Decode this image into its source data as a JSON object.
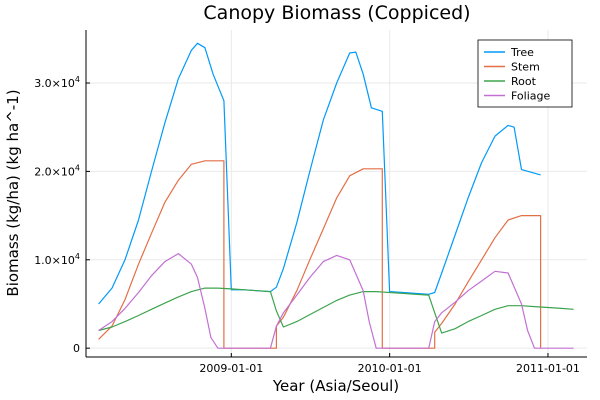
{
  "chart_data": {
    "type": "line",
    "title": "Canopy Biomass (Coppiced)",
    "xlabel": "Year (Asia/Seoul)",
    "ylabel": "Biomass (kg/ha) (kg ha^-1)",
    "x_unit": "date",
    "xlim": [
      "2008-02-01",
      "2011-04-01"
    ],
    "ylim": [
      -1000,
      36000
    ],
    "x_ticks": [
      "2009-01-01",
      "2010-01-01",
      "2011-01-01"
    ],
    "x_tick_labels": [
      "2009-01-01",
      "2010-01-01",
      "2011-01-01"
    ],
    "y_ticks": [
      0,
      10000,
      20000,
      30000
    ],
    "y_tick_labels": [
      {
        "label": "0",
        "base": "0",
        "exp": ""
      },
      {
        "label": "1.0×10^4",
        "base": "1.0×10",
        "exp": "4"
      },
      {
        "label": "2.0×10^4",
        "base": "2.0×10",
        "exp": "4"
      },
      {
        "label": "3.0×10^4",
        "base": "3.0×10",
        "exp": "4"
      }
    ],
    "grid": true,
    "legend_position": "top-right",
    "series": [
      {
        "name": "Tree",
        "color": "#009AFA",
        "x": [
          "2008-03-01",
          "2008-04-01",
          "2008-05-01",
          "2008-06-01",
          "2008-07-01",
          "2008-08-01",
          "2008-09-01",
          "2008-10-01",
          "2008-10-15",
          "2008-11-01",
          "2008-11-20",
          "2008-12-15",
          "2008-12-15",
          "2009-01-01",
          "2009-02-01",
          "2009-03-01",
          "2009-04-01",
          "2009-04-15",
          "2009-05-01",
          "2009-06-01",
          "2009-07-01",
          "2009-08-01",
          "2009-09-01",
          "2009-10-01",
          "2009-10-15",
          "2009-11-01",
          "2009-11-20",
          "2009-12-15",
          "2009-12-15",
          "2010-01-01",
          "2010-02-01",
          "2010-03-01",
          "2010-04-01",
          "2010-04-15",
          "2010-05-01",
          "2010-06-01",
          "2010-07-01",
          "2010-08-01",
          "2010-09-01",
          "2010-10-01",
          "2010-10-15",
          "2010-11-01",
          "2010-12-01",
          "2010-12-15",
          "2010-12-15"
        ],
        "values": [
          5000,
          6800,
          10000,
          14500,
          20000,
          25500,
          30500,
          33700,
          34500,
          34000,
          31000,
          28000,
          28000,
          6600,
          6600,
          6500,
          6400,
          6900,
          9000,
          14200,
          20000,
          25800,
          30000,
          33400,
          33500,
          31000,
          27200,
          26800,
          26800,
          6400,
          6300,
          6200,
          6100,
          6300,
          8500,
          12800,
          17000,
          21000,
          24000,
          25200,
          25000,
          20200,
          19800,
          19600,
          19600
        ]
      },
      {
        "name": "Stem",
        "color": "#E26F46",
        "x": [
          "2008-03-01",
          "2008-04-01",
          "2008-05-01",
          "2008-06-01",
          "2008-07-01",
          "2008-08-01",
          "2008-09-01",
          "2008-10-01",
          "2008-11-01",
          "2008-11-20",
          "2008-12-15",
          "2008-12-15",
          "2009-04-15",
          "2009-04-15",
          "2009-05-01",
          "2009-06-01",
          "2009-07-01",
          "2009-08-01",
          "2009-09-01",
          "2009-10-01",
          "2009-11-01",
          "2009-11-20",
          "2009-12-15",
          "2009-12-15",
          "2010-04-15",
          "2010-04-15",
          "2010-05-01",
          "2010-06-01",
          "2010-07-01",
          "2010-08-01",
          "2010-09-01",
          "2010-10-01",
          "2010-11-01",
          "2010-12-15",
          "2010-12-15"
        ],
        "values": [
          1000,
          2500,
          5500,
          9500,
          13000,
          16500,
          19000,
          20800,
          21200,
          21200,
          21200,
          0,
          0,
          2500,
          3500,
          6500,
          10000,
          13500,
          17000,
          19500,
          20300,
          20300,
          20300,
          0,
          0,
          1800,
          2800,
          5000,
          7500,
          10000,
          12500,
          14500,
          15000,
          15000,
          0
        ]
      },
      {
        "name": "Root",
        "color": "#3DA44D",
        "x": [
          "2008-03-01",
          "2008-04-01",
          "2008-05-01",
          "2008-06-01",
          "2008-07-01",
          "2008-08-01",
          "2008-09-01",
          "2008-10-01",
          "2008-11-01",
          "2008-12-01",
          "2009-01-01",
          "2009-02-01",
          "2009-03-01",
          "2009-04-01",
          "2009-04-15",
          "2009-05-01",
          "2009-06-01",
          "2009-07-01",
          "2009-08-01",
          "2009-09-01",
          "2009-10-01",
          "2009-11-01",
          "2009-12-01",
          "2010-01-01",
          "2010-02-01",
          "2010-03-01",
          "2010-04-01",
          "2010-04-15",
          "2010-05-01",
          "2010-06-01",
          "2010-07-01",
          "2010-08-01",
          "2010-09-01",
          "2010-10-01",
          "2010-11-01",
          "2010-12-01",
          "2011-01-01",
          "2011-02-01",
          "2011-03-01"
        ],
        "values": [
          2000,
          2400,
          3000,
          3700,
          4400,
          5100,
          5800,
          6400,
          6800,
          6800,
          6700,
          6600,
          6500,
          6400,
          4200,
          2400,
          3000,
          3800,
          4600,
          5400,
          6000,
          6400,
          6400,
          6300,
          6200,
          6100,
          6000,
          4000,
          1700,
          2200,
          3000,
          3700,
          4400,
          4800,
          4800,
          4700,
          4600,
          4500,
          4400
        ]
      },
      {
        "name": "Foliage",
        "color": "#C271D2",
        "x": [
          "2008-03-01",
          "2008-04-01",
          "2008-05-01",
          "2008-06-01",
          "2008-07-01",
          "2008-08-01",
          "2008-09-01",
          "2008-10-01",
          "2008-10-15",
          "2008-11-01",
          "2008-11-15",
          "2008-12-01",
          "2009-01-01",
          "2009-02-01",
          "2009-03-01",
          "2009-04-01",
          "2009-04-15",
          "2009-05-01",
          "2009-06-01",
          "2009-07-01",
          "2009-08-01",
          "2009-09-01",
          "2009-10-01",
          "2009-11-01",
          "2009-11-15",
          "2009-12-01",
          "2010-01-01",
          "2010-02-01",
          "2010-03-01",
          "2010-04-01",
          "2010-04-15",
          "2010-05-01",
          "2010-06-01",
          "2010-07-01",
          "2010-08-01",
          "2010-09-01",
          "2010-10-01",
          "2010-11-01",
          "2010-11-15",
          "2010-12-01",
          "2011-01-01",
          "2011-02-01",
          "2011-03-01"
        ],
        "values": [
          2000,
          3000,
          4500,
          6300,
          8200,
          9800,
          10700,
          9500,
          8000,
          4500,
          1200,
          0,
          0,
          0,
          0,
          0,
          2500,
          4000,
          6000,
          8000,
          9800,
          10500,
          10000,
          6500,
          3000,
          0,
          0,
          0,
          0,
          0,
          3000,
          4000,
          5200,
          6500,
          7600,
          8700,
          8500,
          5000,
          2000,
          0,
          0,
          0,
          0
        ]
      }
    ]
  }
}
